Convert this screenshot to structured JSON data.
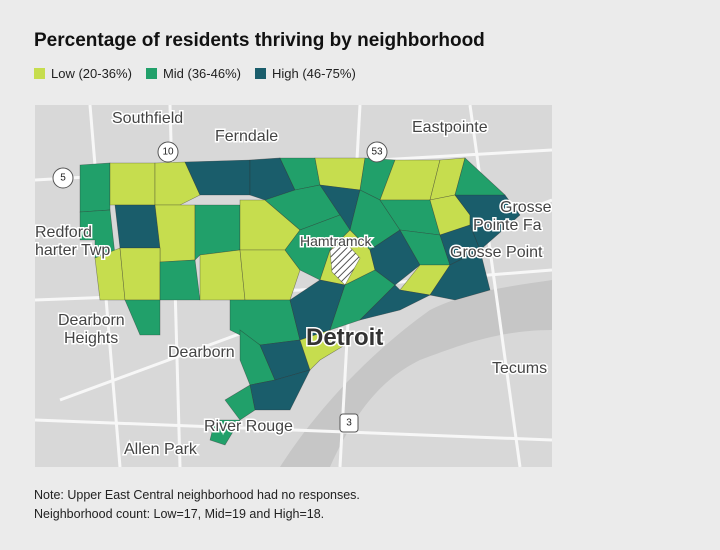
{
  "title": "Percentage of residents thriving by neighborhood",
  "legend": [
    {
      "label": "Low (20-36%)",
      "color": "#c6dd4e"
    },
    {
      "label": "Mid (36-46%)",
      "color": "#21a06a"
    },
    {
      "label": "High (46-75%)",
      "color": "#1a5d6b"
    }
  ],
  "map_labels": [
    "Southfield",
    "Ferndale",
    "Eastpointe",
    "Redford",
    "harter Twp",
    "Grosse",
    "Pointe Fa",
    "Grosse Point",
    "Hamtramck",
    "Dearborn",
    "Heights",
    "Dearborn",
    "Detroit",
    "Tecums",
    "River Rouge",
    "Allen Park"
  ],
  "road_shields": [
    "10",
    "53",
    "5",
    "3"
  ],
  "notes": [
    "Note: Upper East Central neighborhood had no responses.",
    "Neighborhood count: Low=17, Mid=19 and High=18."
  ]
}
